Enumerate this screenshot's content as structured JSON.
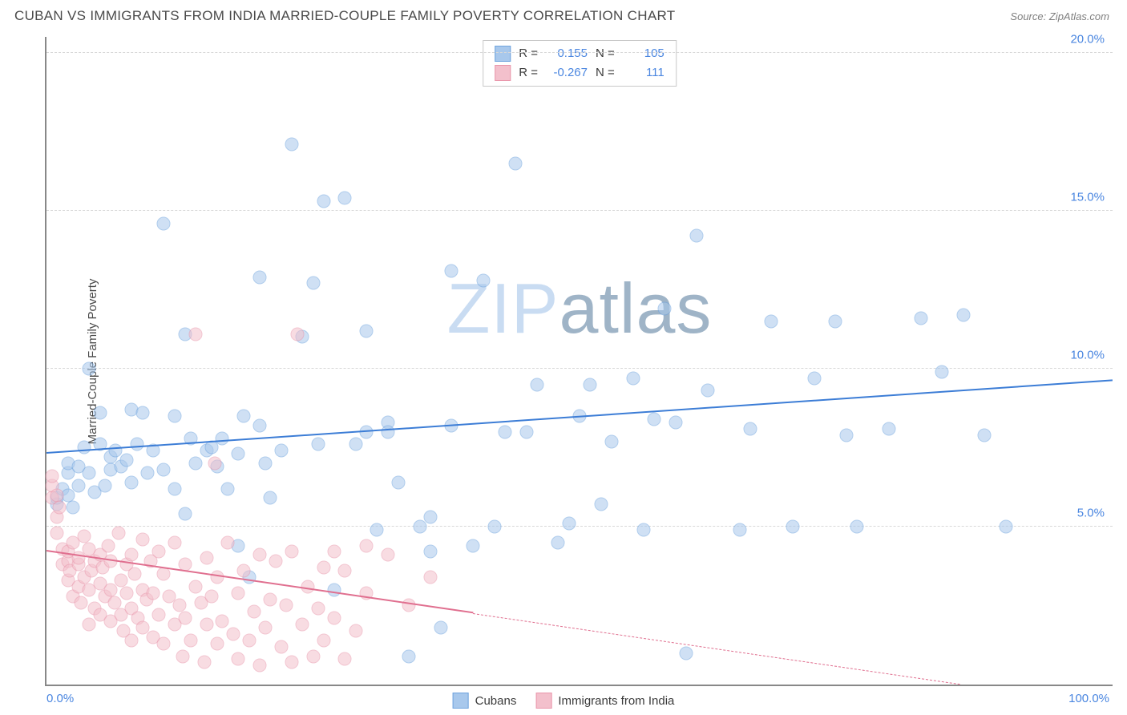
{
  "title": "CUBAN VS IMMIGRANTS FROM INDIA MARRIED-COUPLE FAMILY POVERTY CORRELATION CHART",
  "source_label": "Source:",
  "source_value": "ZipAtlas.com",
  "ylabel": "Married-Couple Family Poverty",
  "watermark": {
    "text_light": "ZIP",
    "text_dark": "atlas",
    "color_light": "#c9dcf2",
    "color_dark": "#9fb4c7",
    "fontsize": 88
  },
  "chart": {
    "type": "scatter",
    "background_color": "#ffffff",
    "axis_color": "#888888",
    "grid_color": "#d8d8d8",
    "xlim": [
      0,
      100
    ],
    "ylim": [
      0,
      20.5
    ],
    "xticks": [
      {
        "v": 0,
        "label": "0.0%",
        "color": "#4a86e0",
        "align": "left"
      },
      {
        "v": 100,
        "label": "100.0%",
        "color": "#4a86e0",
        "align": "right"
      }
    ],
    "yticks": [
      {
        "v": 5,
        "label": "5.0%",
        "color": "#4a86e0"
      },
      {
        "v": 10,
        "label": "10.0%",
        "color": "#4a86e0"
      },
      {
        "v": 15,
        "label": "15.0%",
        "color": "#4a86e0"
      },
      {
        "v": 20,
        "label": "20.0%",
        "color": "#4a86e0"
      }
    ],
    "point_radius": 8.5,
    "point_opacity": 0.55,
    "series": [
      {
        "name": "Cubans",
        "fill": "#a8c8ec",
        "stroke": "#6ea3de",
        "trend_color": "#3c7dd6",
        "trend": {
          "y_at_x0": 7.3,
          "y_at_x100": 9.6,
          "x_solid_end": 100
        },
        "stats": {
          "R": "0.155",
          "N": "105"
        },
        "points": [
          [
            1,
            5.7
          ],
          [
            1,
            5.9
          ],
          [
            1.5,
            6.2
          ],
          [
            2,
            6.0
          ],
          [
            2,
            6.7
          ],
          [
            2,
            7.0
          ],
          [
            2.5,
            5.6
          ],
          [
            3,
            6.3
          ],
          [
            3,
            6.9
          ],
          [
            3.5,
            7.5
          ],
          [
            4,
            10.0
          ],
          [
            4,
            6.7
          ],
          [
            4.5,
            6.1
          ],
          [
            5,
            7.6
          ],
          [
            5,
            8.6
          ],
          [
            5.5,
            6.3
          ],
          [
            6,
            7.2
          ],
          [
            6,
            6.8
          ],
          [
            6.5,
            7.4
          ],
          [
            7,
            6.9
          ],
          [
            7.5,
            7.1
          ],
          [
            8,
            8.7
          ],
          [
            8,
            6.4
          ],
          [
            8.5,
            7.6
          ],
          [
            9,
            8.6
          ],
          [
            9.5,
            6.7
          ],
          [
            10,
            7.4
          ],
          [
            11,
            6.8
          ],
          [
            11,
            14.6
          ],
          [
            12,
            8.5
          ],
          [
            12,
            6.2
          ],
          [
            13,
            5.4
          ],
          [
            13,
            11.1
          ],
          [
            13.5,
            7.8
          ],
          [
            14,
            7.0
          ],
          [
            15,
            7.4
          ],
          [
            15.5,
            7.5
          ],
          [
            16,
            6.9
          ],
          [
            16.5,
            7.8
          ],
          [
            17,
            6.2
          ],
          [
            18,
            4.4
          ],
          [
            18,
            7.3
          ],
          [
            18.5,
            8.5
          ],
          [
            19,
            3.4
          ],
          [
            20,
            12.9
          ],
          [
            20,
            8.2
          ],
          [
            20.5,
            7.0
          ],
          [
            21,
            5.9
          ],
          [
            22,
            7.4
          ],
          [
            23,
            17.1
          ],
          [
            24,
            11.0
          ],
          [
            25,
            12.7
          ],
          [
            25.5,
            7.6
          ],
          [
            26,
            15.3
          ],
          [
            27,
            3.0
          ],
          [
            28,
            15.4
          ],
          [
            29,
            7.6
          ],
          [
            30,
            11.2
          ],
          [
            30,
            8.0
          ],
          [
            31,
            4.9
          ],
          [
            32,
            8.3
          ],
          [
            32,
            8.0
          ],
          [
            33,
            6.4
          ],
          [
            34,
            0.9
          ],
          [
            35,
            5.0
          ],
          [
            36,
            5.3
          ],
          [
            36,
            4.2
          ],
          [
            37,
            1.8
          ],
          [
            38,
            8.2
          ],
          [
            38,
            13.1
          ],
          [
            40,
            4.4
          ],
          [
            41,
            12.8
          ],
          [
            42,
            5.0
          ],
          [
            43,
            8.0
          ],
          [
            44,
            16.5
          ],
          [
            45,
            8.0
          ],
          [
            46,
            9.5
          ],
          [
            48,
            4.5
          ],
          [
            49,
            5.1
          ],
          [
            50,
            8.5
          ],
          [
            51,
            9.5
          ],
          [
            52,
            5.7
          ],
          [
            53,
            7.7
          ],
          [
            55,
            9.7
          ],
          [
            56,
            4.9
          ],
          [
            57,
            8.4
          ],
          [
            58,
            11.9
          ],
          [
            59,
            8.3
          ],
          [
            60,
            1.0
          ],
          [
            61,
            14.2
          ],
          [
            62,
            9.3
          ],
          [
            65,
            4.9
          ],
          [
            66,
            8.1
          ],
          [
            68,
            11.5
          ],
          [
            70,
            5.0
          ],
          [
            72,
            9.7
          ],
          [
            74,
            11.5
          ],
          [
            75,
            7.9
          ],
          [
            76,
            5.0
          ],
          [
            79,
            8.1
          ],
          [
            82,
            11.6
          ],
          [
            84,
            9.9
          ],
          [
            86,
            11.7
          ],
          [
            88,
            7.9
          ],
          [
            90,
            5.0
          ]
        ]
      },
      {
        "name": "Immigrants from India",
        "fill": "#f3c0cc",
        "stroke": "#e996ab",
        "trend_color": "#e06f8f",
        "trend": {
          "y_at_x0": 4.2,
          "y_at_x100": -0.7,
          "x_solid_end": 40
        },
        "stats": {
          "R": "-0.267",
          "N": "111"
        },
        "points": [
          [
            0.5,
            6.3
          ],
          [
            0.5,
            5.9
          ],
          [
            0.5,
            6.6
          ],
          [
            1,
            5.3
          ],
          [
            1,
            6.0
          ],
          [
            1,
            4.8
          ],
          [
            1.2,
            5.6
          ],
          [
            1.5,
            4.3
          ],
          [
            1.5,
            3.8
          ],
          [
            2,
            3.9
          ],
          [
            2,
            4.2
          ],
          [
            2,
            3.3
          ],
          [
            2.2,
            3.6
          ],
          [
            2.5,
            4.5
          ],
          [
            2.5,
            2.8
          ],
          [
            3,
            3.1
          ],
          [
            3,
            3.8
          ],
          [
            3,
            4.0
          ],
          [
            3.2,
            2.6
          ],
          [
            3.5,
            3.4
          ],
          [
            3.5,
            4.7
          ],
          [
            4,
            3.0
          ],
          [
            4,
            4.3
          ],
          [
            4,
            1.9
          ],
          [
            4.2,
            3.6
          ],
          [
            4.5,
            2.4
          ],
          [
            4.5,
            3.9
          ],
          [
            5,
            3.2
          ],
          [
            5,
            4.1
          ],
          [
            5,
            2.2
          ],
          [
            5.3,
            3.7
          ],
          [
            5.5,
            2.8
          ],
          [
            5.8,
            4.4
          ],
          [
            6,
            3.0
          ],
          [
            6,
            2.0
          ],
          [
            6,
            3.9
          ],
          [
            6.4,
            2.6
          ],
          [
            6.8,
            4.8
          ],
          [
            7,
            3.3
          ],
          [
            7,
            2.2
          ],
          [
            7.2,
            1.7
          ],
          [
            7.5,
            3.8
          ],
          [
            7.5,
            2.9
          ],
          [
            8,
            2.4
          ],
          [
            8,
            4.1
          ],
          [
            8,
            1.4
          ],
          [
            8.3,
            3.5
          ],
          [
            8.6,
            2.1
          ],
          [
            9,
            3.0
          ],
          [
            9,
            4.6
          ],
          [
            9,
            1.8
          ],
          [
            9.4,
            2.7
          ],
          [
            9.8,
            3.9
          ],
          [
            10,
            1.5
          ],
          [
            10,
            2.9
          ],
          [
            10.5,
            4.2
          ],
          [
            10.5,
            2.2
          ],
          [
            11,
            3.5
          ],
          [
            11,
            1.3
          ],
          [
            11.5,
            2.8
          ],
          [
            12,
            4.5
          ],
          [
            12,
            1.9
          ],
          [
            12.5,
            2.5
          ],
          [
            12.8,
            0.9
          ],
          [
            13,
            3.8
          ],
          [
            13,
            2.1
          ],
          [
            13.5,
            1.4
          ],
          [
            14,
            3.1
          ],
          [
            14,
            11.1
          ],
          [
            14.5,
            2.6
          ],
          [
            14.8,
            0.7
          ],
          [
            15,
            1.9
          ],
          [
            15,
            4.0
          ],
          [
            15.5,
            2.8
          ],
          [
            15.8,
            7.0
          ],
          [
            16,
            1.3
          ],
          [
            16,
            3.4
          ],
          [
            16.5,
            2.0
          ],
          [
            17,
            4.5
          ],
          [
            17.5,
            1.6
          ],
          [
            18,
            2.9
          ],
          [
            18,
            0.8
          ],
          [
            18.5,
            3.6
          ],
          [
            19,
            1.4
          ],
          [
            19.5,
            2.3
          ],
          [
            20,
            0.6
          ],
          [
            20,
            4.1
          ],
          [
            20.5,
            1.8
          ],
          [
            21,
            2.7
          ],
          [
            21.5,
            3.9
          ],
          [
            22,
            1.2
          ],
          [
            22.5,
            2.5
          ],
          [
            23,
            0.7
          ],
          [
            23,
            4.2
          ],
          [
            23.5,
            11.1
          ],
          [
            24,
            1.9
          ],
          [
            24.5,
            3.1
          ],
          [
            25,
            0.9
          ],
          [
            25.5,
            2.4
          ],
          [
            26,
            3.7
          ],
          [
            26,
            1.4
          ],
          [
            27,
            4.2
          ],
          [
            27,
            2.1
          ],
          [
            28,
            0.8
          ],
          [
            28,
            3.6
          ],
          [
            29,
            1.7
          ],
          [
            30,
            2.9
          ],
          [
            30,
            4.4
          ],
          [
            32,
            4.1
          ],
          [
            34,
            2.5
          ],
          [
            36,
            3.4
          ]
        ]
      }
    ],
    "legend_top": {
      "border_color": "#c8c8c8",
      "label_R": "R =",
      "label_N": "N =",
      "value_color": "#4a86e0"
    },
    "legend_bottom_color": "#3a3a3a"
  }
}
